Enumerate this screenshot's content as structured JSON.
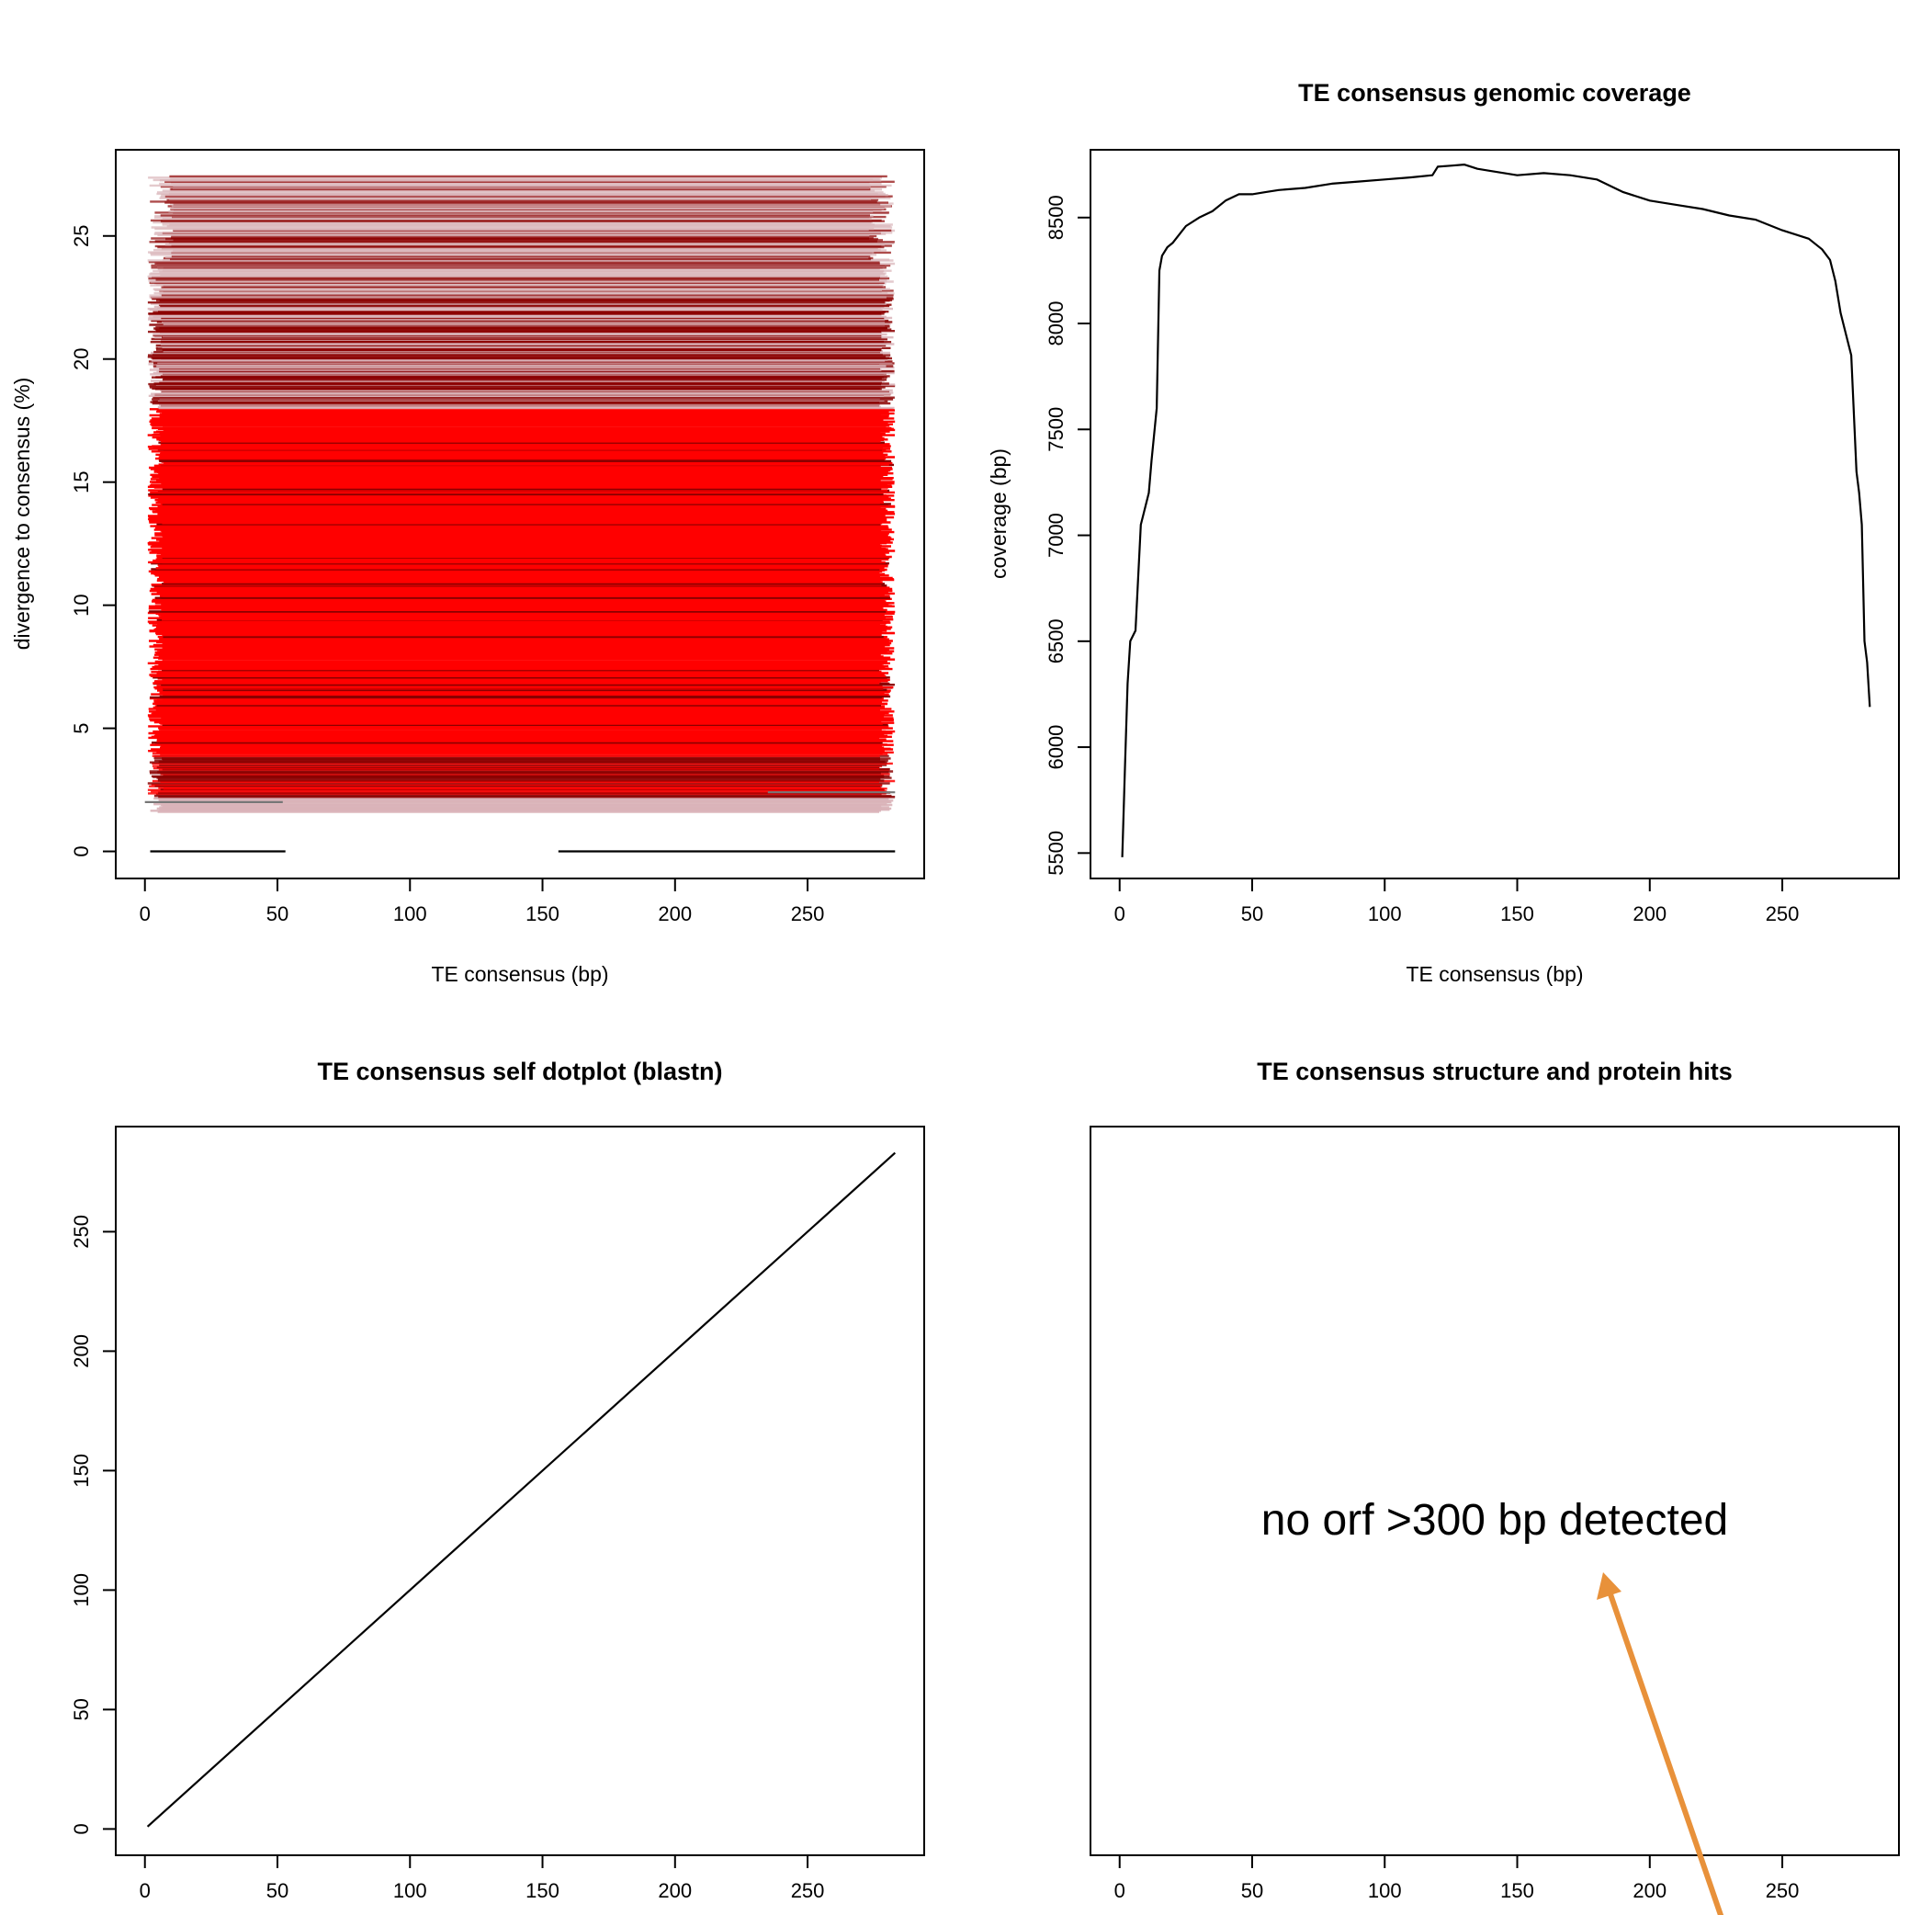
{
  "colors": {
    "divergence_young": "#ff0000",
    "divergence_mid": "#8b0000",
    "divergence_old": "#d9b3b8",
    "line": "#000000",
    "arrow": "#e8913a"
  },
  "chart_data": [
    {
      "id": "divergence",
      "type": "segments",
      "title": "",
      "xlabel": "TE consensus (bp)",
      "ylabel": "divergence to consensus (%)",
      "xlim": [
        -11,
        294
      ],
      "ylim": [
        -1.1,
        28.5
      ],
      "xticks": [
        0,
        50,
        100,
        150,
        200,
        250
      ],
      "yticks": [
        0,
        5,
        10,
        15,
        20,
        25
      ],
      "consensus_length": 283,
      "divergence_range": [
        0,
        27.4
      ],
      "dense_band_pct": [
        4,
        18
      ],
      "low_hits": [
        {
          "x0": 2,
          "x1": 53,
          "y": 0
        },
        {
          "x0": 156,
          "x1": 283,
          "y": 0
        },
        {
          "x0": 0,
          "x1": 52,
          "y": 2.0
        },
        {
          "x0": 235,
          "x1": 283,
          "y": 2.4
        }
      ]
    },
    {
      "id": "coverage",
      "type": "line",
      "title": "TE consensus genomic coverage",
      "xlabel": "TE consensus (bp)",
      "ylabel": "coverage (bp)",
      "xlim": [
        -11,
        294
      ],
      "ylim": [
        5380,
        8820
      ],
      "xticks": [
        0,
        50,
        100,
        150,
        200,
        250
      ],
      "yticks": [
        5500,
        6000,
        6500,
        7000,
        7500,
        8000,
        8500
      ],
      "x": [
        1,
        2,
        3,
        4,
        6,
        8,
        9,
        11,
        12,
        14,
        15,
        16,
        18,
        20,
        25,
        30,
        35,
        40,
        45,
        50,
        55,
        60,
        70,
        80,
        90,
        100,
        110,
        118,
        120,
        125,
        130,
        135,
        140,
        150,
        160,
        170,
        180,
        190,
        200,
        210,
        220,
        230,
        240,
        250,
        255,
        260,
        265,
        268,
        270,
        272,
        274,
        276,
        278,
        279,
        280,
        281,
        282,
        283
      ],
      "y": [
        5480,
        5900,
        6300,
        6500,
        6550,
        7050,
        7100,
        7200,
        7350,
        7600,
        8250,
        8320,
        8360,
        8380,
        8460,
        8500,
        8530,
        8580,
        8610,
        8610,
        8620,
        8630,
        8640,
        8660,
        8670,
        8680,
        8690,
        8700,
        8740,
        8745,
        8750,
        8730,
        8720,
        8700,
        8710,
        8700,
        8680,
        8620,
        8580,
        8560,
        8540,
        8510,
        8490,
        8440,
        8420,
        8400,
        8350,
        8300,
        8200,
        8050,
        7950,
        7850,
        7300,
        7200,
        7050,
        6500,
        6400,
        6190
      ]
    },
    {
      "id": "dotplot",
      "type": "line",
      "title": "TE consensus self dotplot (blastn)",
      "xlabel": "",
      "ylabel": "",
      "xlim": [
        -11,
        294
      ],
      "ylim": [
        -11,
        294
      ],
      "xticks": [
        0,
        50,
        100,
        150,
        200,
        250
      ],
      "yticks": [
        0,
        50,
        100,
        150,
        200,
        250
      ],
      "x": [
        1,
        283
      ],
      "y": [
        1,
        283
      ]
    },
    {
      "id": "structure",
      "type": "text",
      "title": "TE consensus structure and protein hits",
      "xlabel": "",
      "ylabel": "",
      "xlim": [
        -11,
        294
      ],
      "xticks": [
        0,
        50,
        100,
        150,
        200,
        250
      ],
      "message": "no orf >300 bp detected"
    }
  ]
}
